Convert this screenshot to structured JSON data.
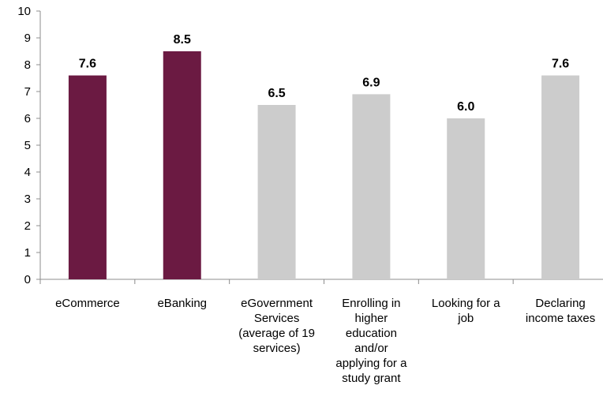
{
  "chart_data": {
    "type": "bar",
    "categories": [
      "eCommerce",
      "eBanking",
      "eGovernment Services (average of 19 services)",
      "Enrolling in higher education and/or applying for a study grant",
      "Looking for a job",
      "Declaring income taxes"
    ],
    "category_lines": [
      [
        "eCommerce"
      ],
      [
        "eBanking"
      ],
      [
        "eGovernment",
        "Services",
        "(average of 19",
        "services)"
      ],
      [
        "Enrolling in",
        "higher",
        "education",
        "and/or",
        "applying for a",
        "study grant"
      ],
      [
        "Looking for a",
        "job"
      ],
      [
        "Declaring",
        "income taxes"
      ]
    ],
    "values": [
      7.6,
      8.5,
      6.5,
      6.9,
      6.0,
      7.6
    ],
    "value_labels": [
      "7.6",
      "8.5",
      "6.5",
      "6.9",
      "6.0",
      "7.6"
    ],
    "bar_colors": [
      "#6b1a42",
      "#6b1a42",
      "#cccccc",
      "#cccccc",
      "#cccccc",
      "#cccccc"
    ],
    "ylim": [
      0,
      10
    ],
    "yticks": [
      "0",
      "1",
      "2",
      "3",
      "4",
      "5",
      "6",
      "7",
      "8",
      "9",
      "10"
    ],
    "grid": false,
    "title": "",
    "xlabel": "",
    "ylabel": ""
  }
}
